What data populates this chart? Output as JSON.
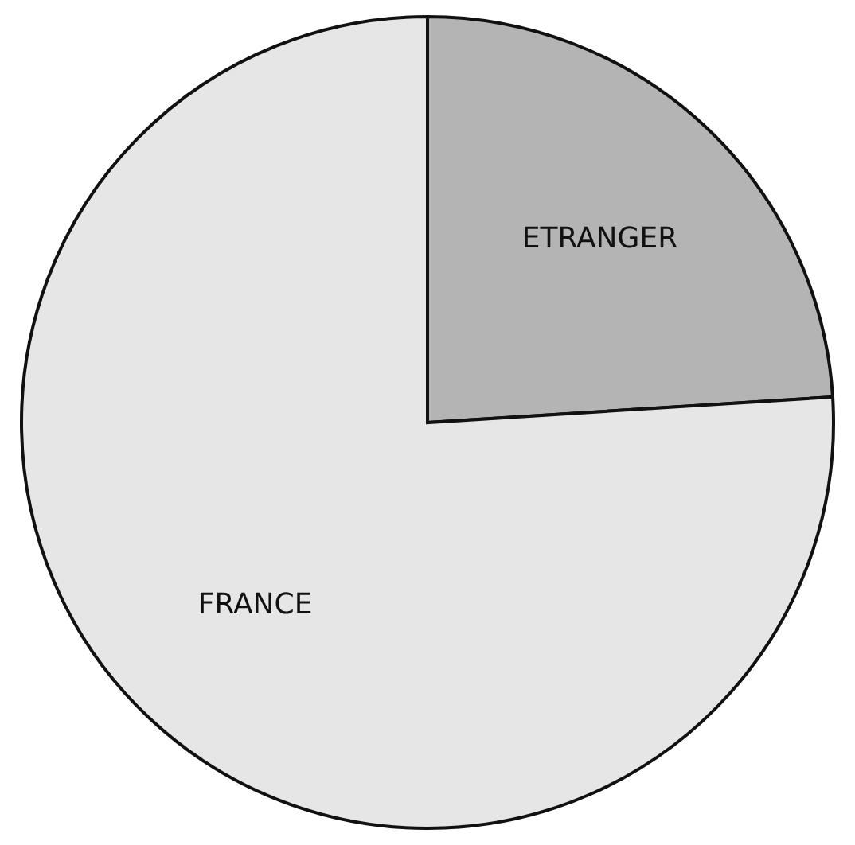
{
  "chart_data": {
    "type": "pie",
    "categories": [
      "ETRANGER",
      "FRANCE"
    ],
    "values": [
      24,
      76
    ],
    "colors": [
      "#b4b4b4",
      "#e6e6e6"
    ]
  }
}
